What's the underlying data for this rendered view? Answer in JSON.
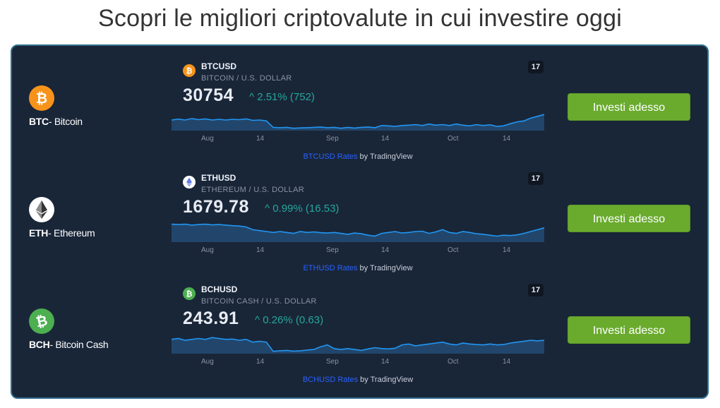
{
  "page": {
    "title": "Scopri le migliori criptovalute in cui investire oggi"
  },
  "colors": {
    "panel_bg": "#192638",
    "btc": "#f7931a",
    "eth": "#ffffff",
    "bch": "#4caf50",
    "positive": "#26a69a",
    "button": "#6aab2e",
    "chart_line": "#2196f3"
  },
  "coins": [
    {
      "ticker": "BTC",
      "name": "- Bitcoin",
      "icon": "bitcoin-icon",
      "symbol": "BTCUSD",
      "description": "BITCOIN / U.S. DOLLAR",
      "price": "30754",
      "change": "^ 2.51% (752)",
      "ticks": [
        "Aug",
        "14",
        "Sep",
        "14",
        "Oct",
        "14"
      ],
      "attribution_link": "BTCUSD Rates",
      "attribution_rest": " by TradingView",
      "button": "Investi adesso",
      "series": [
        0.5,
        0.45,
        0.5,
        0.42,
        0.48,
        0.44,
        0.5,
        0.46,
        0.5,
        0.46,
        0.48,
        0.44,
        0.52,
        0.5,
        0.55,
        0.9,
        0.92,
        0.9,
        0.95,
        0.93,
        0.92,
        0.9,
        0.88,
        0.92,
        0.9,
        0.95,
        0.9,
        0.94,
        0.9,
        0.88,
        0.92,
        0.8,
        0.82,
        0.85,
        0.8,
        0.78,
        0.75,
        0.8,
        0.72,
        0.78,
        0.75,
        0.8,
        0.72,
        0.78,
        0.82,
        0.75,
        0.8,
        0.76,
        0.85,
        0.82,
        0.7,
        0.6,
        0.55,
        0.4,
        0.3,
        0.2
      ]
    },
    {
      "ticker": "ETH",
      "name": "- Ethereum",
      "icon": "ethereum-icon",
      "symbol": "ETHUSD",
      "description": "ETHEREUM / U.S. DOLLAR",
      "price": "1679.78",
      "change": "^ 0.99% (16.53)",
      "ticks": [
        "Aug",
        "14",
        "Sep",
        "14",
        "Oct",
        "14"
      ],
      "attribution_link": "ETHUSD Rates",
      "attribution_rest": " by TradingView",
      "button": "Investi adesso",
      "series": [
        0.1,
        0.12,
        0.1,
        0.15,
        0.12,
        0.1,
        0.14,
        0.12,
        0.15,
        0.18,
        0.2,
        0.25,
        0.4,
        0.45,
        0.5,
        0.55,
        0.5,
        0.55,
        0.6,
        0.5,
        0.55,
        0.52,
        0.56,
        0.58,
        0.55,
        0.6,
        0.65,
        0.58,
        0.62,
        0.7,
        0.75,
        0.6,
        0.55,
        0.5,
        0.58,
        0.55,
        0.5,
        0.48,
        0.6,
        0.52,
        0.4,
        0.55,
        0.6,
        0.5,
        0.55,
        0.62,
        0.65,
        0.7,
        0.75,
        0.7,
        0.72,
        0.68,
        0.6,
        0.5,
        0.4,
        0.3
      ]
    },
    {
      "ticker": "BCH",
      "name": "- Bitcoin Cash",
      "icon": "bitcoin-cash-icon",
      "symbol": "BCHUSD",
      "description": "BITCOIN CASH / U.S. DOLLAR",
      "price": "243.91",
      "change": "^ 0.26% (0.63)",
      "ticks": [
        "Aug",
        "14",
        "Sep",
        "14",
        "Oct",
        "14"
      ],
      "attribution_link": "BCHUSD Rates",
      "attribution_rest": " by TradingView",
      "button": "Investi adesso",
      "series": [
        0.3,
        0.25,
        0.35,
        0.3,
        0.25,
        0.3,
        0.2,
        0.25,
        0.3,
        0.28,
        0.35,
        0.3,
        0.45,
        0.4,
        0.45,
        0.95,
        0.92,
        0.9,
        0.94,
        0.92,
        0.88,
        0.85,
        0.7,
        0.6,
        0.8,
        0.85,
        0.8,
        0.85,
        0.9,
        0.82,
        0.75,
        0.8,
        0.82,
        0.78,
        0.6,
        0.55,
        0.65,
        0.6,
        0.55,
        0.5,
        0.45,
        0.55,
        0.6,
        0.5,
        0.55,
        0.58,
        0.6,
        0.55,
        0.6,
        0.58,
        0.5,
        0.45,
        0.4,
        0.35,
        0.38,
        0.35
      ]
    }
  ]
}
